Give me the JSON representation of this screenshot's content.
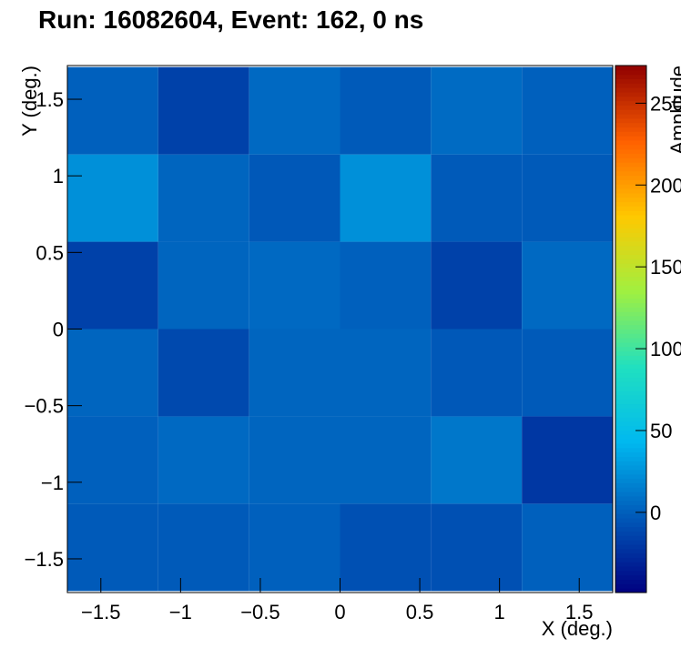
{
  "chart_data": {
    "type": "heatmap",
    "title": "Run: 16082604, Event: 162, 0 ns",
    "xlabel": "X (deg.)",
    "ylabel": "Y (deg.)",
    "zlabel": "Amplitude",
    "xbins": [
      -1.71,
      -1.14,
      -0.57,
      0,
      0.57,
      1.14,
      1.71
    ],
    "ybins": [
      -1.71,
      -1.14,
      -0.57,
      0,
      0.57,
      1.14,
      1.71
    ],
    "z": [
      [
        -2,
        -2,
        1,
        -7,
        -7,
        1
      ],
      [
        1,
        5,
        3,
        3,
        12,
        -20
      ],
      [
        3,
        -11,
        3,
        3,
        -3,
        -2
      ],
      [
        -15,
        3,
        5,
        1,
        -15,
        5
      ],
      [
        24,
        3,
        -3,
        24,
        -2,
        -2
      ],
      [
        1,
        -15,
        5,
        -2,
        6,
        1
      ]
    ],
    "xlim": [
      -1.71,
      1.71
    ],
    "ylim": [
      -1.72,
      1.72
    ],
    "zlim": [
      -49,
      273
    ],
    "xticks": [
      {
        "value": -1.5,
        "label": "−1.5"
      },
      {
        "value": -1,
        "label": "−1"
      },
      {
        "value": -0.5,
        "label": "−0.5"
      },
      0,
      0.5,
      1,
      1.5
    ],
    "yticks": [
      {
        "value": -1.5,
        "label": "−1.5"
      },
      {
        "value": -1,
        "label": "−1"
      },
      {
        "value": -0.5,
        "label": "−0.5"
      },
      0,
      0.5,
      1,
      1.5
    ],
    "zticks": [
      0,
      50,
      100,
      150,
      200,
      250
    ],
    "colorscale": [
      "#000080",
      "#0058b8",
      "#00b8f0",
      "#20e0c0",
      "#a0f040",
      "#ffc800",
      "#ff6000",
      "#900000"
    ]
  }
}
